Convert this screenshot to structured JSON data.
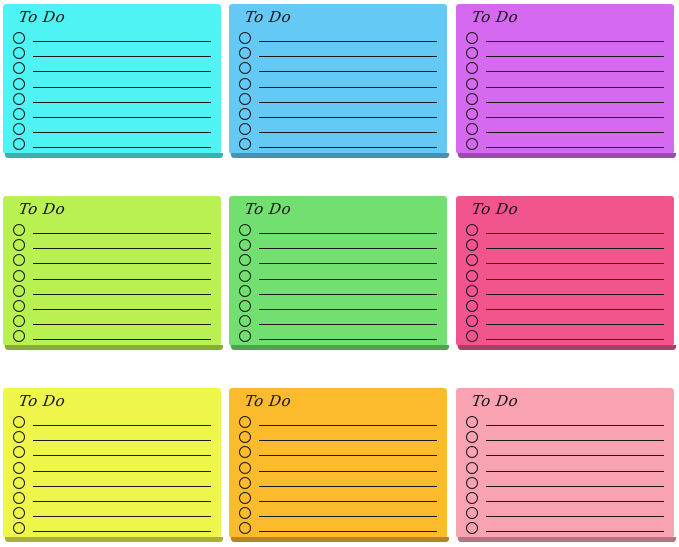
{
  "notes": [
    {
      "title": "To Do",
      "color": "#4ff3f3"
    },
    {
      "title": "To Do",
      "color": "#64c9f5"
    },
    {
      "title": "To Do",
      "color": "#d56af0"
    },
    {
      "title": "To Do",
      "color": "#b9f052"
    },
    {
      "title": "To Do",
      "color": "#72e070"
    },
    {
      "title": "To Do",
      "color": "#f2558e"
    },
    {
      "title": "To Do",
      "color": "#eef64b"
    },
    {
      "title": "To Do",
      "color": "#fbbb2c"
    },
    {
      "title": "To Do",
      "color": "#f8a2b2"
    }
  ],
  "rows_per_note": 8
}
